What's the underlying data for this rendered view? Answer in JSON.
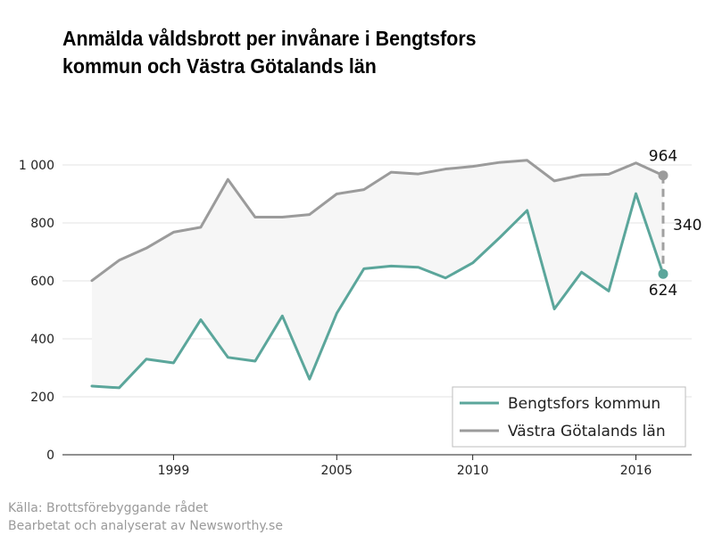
{
  "title": {
    "line1": "Anmälda våldsbrott per invånare i Bengtsfors",
    "line2": "kommun och Västra Götalands län"
  },
  "source": {
    "line1": "Källa: Brottsförebyggande rådet",
    "line2": "Bearbetat och analyserat av Newsworthy.se"
  },
  "colors": {
    "bengtsfors": "#5ba69b",
    "vastra": "#9b9b9b",
    "area": "#f6f6f6",
    "grid": "#e3e3e3",
    "axis": "#222222"
  },
  "chart_data": {
    "type": "line",
    "x": [
      1996,
      1997,
      1998,
      1999,
      2000,
      2001,
      2002,
      2003,
      2004,
      2005,
      2006,
      2007,
      2008,
      2009,
      2010,
      2011,
      2012,
      2013,
      2014,
      2015,
      2016,
      2017
    ],
    "series": [
      {
        "name": "Bengtsfors kommun",
        "color": "#5ba69b",
        "values": [
          237,
          231,
          330,
          317,
          466,
          336,
          323,
          479,
          261,
          488,
          642,
          651,
          647,
          610,
          662,
          750,
          843,
          503,
          630,
          565,
          901,
          624
        ]
      },
      {
        "name": "Västra Götalands län",
        "color": "#9b9b9b",
        "values": [
          601,
          671,
          713,
          768,
          785,
          950,
          820,
          820,
          829,
          900,
          915,
          975,
          969,
          986,
          995,
          1009,
          1016,
          945,
          965,
          968,
          1007,
          964
        ]
      }
    ],
    "ylim": [
      0,
      1000
    ],
    "yticks": [
      0,
      200,
      400,
      600,
      800,
      1000
    ],
    "ytick_labels": [
      "0",
      "200",
      "400",
      "600",
      "800",
      "1 000"
    ],
    "xticks": [
      1999,
      2005,
      2010,
      2016
    ],
    "xtick_labels": [
      "1999",
      "2005",
      "2010",
      "2016"
    ],
    "annotations": {
      "top_value": "964",
      "bottom_value": "624",
      "difference": "340"
    },
    "legend": {
      "position": "bottom-right",
      "entries": [
        "Bengtsfors kommun",
        "Västra Götalands län"
      ]
    }
  }
}
